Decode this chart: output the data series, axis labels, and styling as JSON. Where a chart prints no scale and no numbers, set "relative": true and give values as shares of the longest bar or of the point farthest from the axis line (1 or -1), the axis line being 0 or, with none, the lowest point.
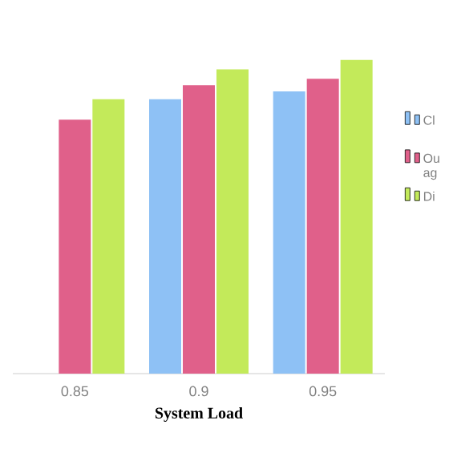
{
  "chart_data": {
    "type": "bar",
    "relative": true,
    "xlabel": "System Load",
    "categories": [
      "0.85",
      "0.9",
      "0.95"
    ],
    "legend": "right",
    "series": [
      {
        "name": "Cl",
        "color": "#8ec1f5",
        "values": [
          null,
          0.875,
          0.9
        ]
      },
      {
        "name": "Ou ag",
        "color": "#e0608a",
        "values": [
          0.81,
          0.92,
          0.94
        ]
      },
      {
        "name": "Di",
        "color": "#c3ea5a",
        "values": [
          0.875,
          0.97,
          1
        ]
      }
    ]
  }
}
